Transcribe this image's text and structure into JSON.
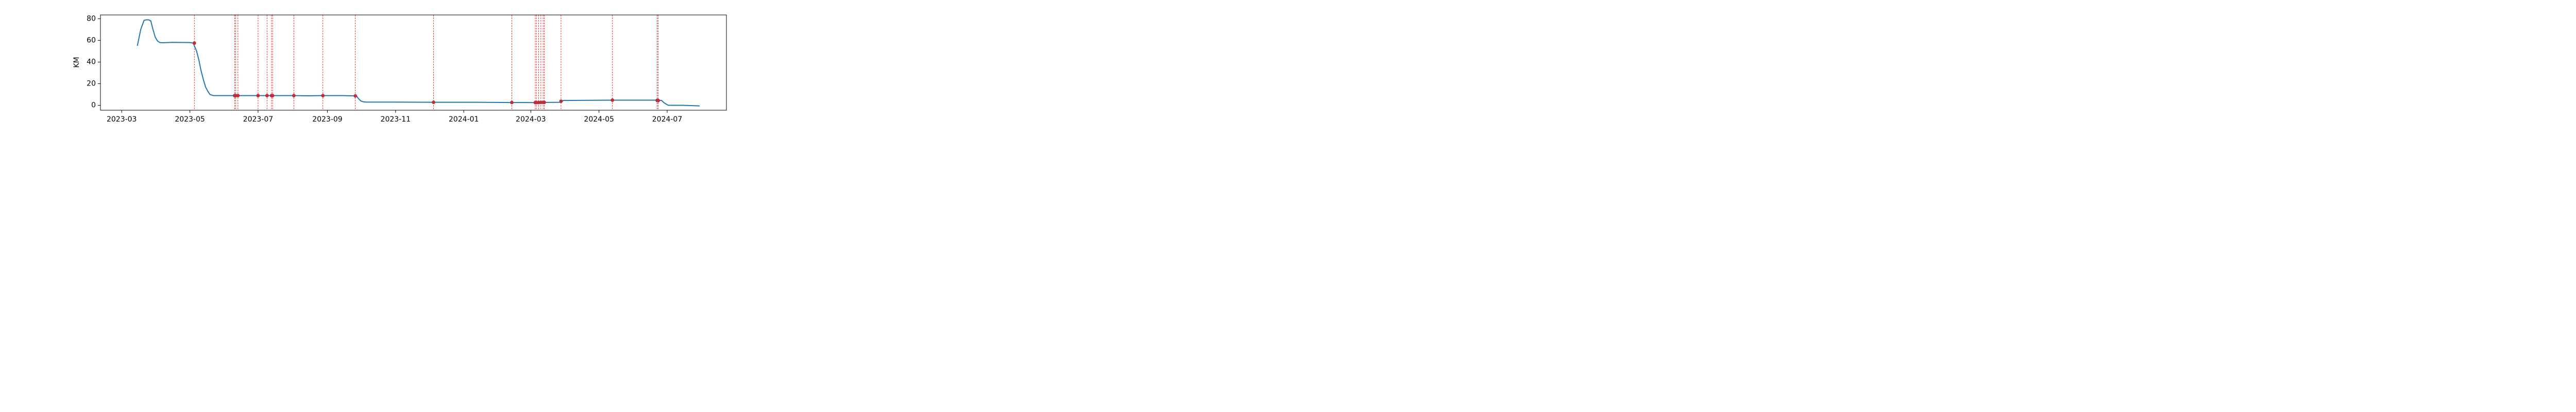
{
  "chart_data": {
    "type": "line",
    "xlabel": "",
    "ylabel": "KM",
    "xlim": [
      "2023-02-10",
      "2024-08-23"
    ],
    "ylim": [
      -4.5,
      83.5
    ],
    "x_ticks": [
      "2023-03",
      "2023-05",
      "2023-07",
      "2023-09",
      "2023-11",
      "2024-01",
      "2024-03",
      "2024-05",
      "2024-07"
    ],
    "y_ticks": [
      "0",
      "20",
      "40",
      "60",
      "80"
    ],
    "grid": false,
    "colors": {
      "line": "#1f77b4",
      "markers": "#d62728",
      "event_lines": "#ff0000"
    },
    "series": [
      {
        "x": [
          "2023-03-15",
          "2023-03-18",
          "2023-03-21",
          "2023-03-23",
          "2023-03-25",
          "2023-03-27",
          "2023-03-29",
          "2023-03-31",
          "2023-04-02",
          "2023-04-04",
          "2023-04-07",
          "2023-04-15",
          "2023-05-01",
          "2023-05-04",
          "2023-05-07",
          "2023-05-09",
          "2023-05-11",
          "2023-05-13",
          "2023-05-15",
          "2023-05-17",
          "2023-05-19",
          "2023-05-22",
          "2023-05-27",
          "2023-06-08",
          "2023-06-09",
          "2023-06-11",
          "2023-07-01",
          "2023-07-09",
          "2023-07-13",
          "2023-07-25",
          "2023-08-02",
          "2023-08-15",
          "2023-08-27",
          "2023-09-15",
          "2023-09-27",
          "2023-09-29",
          "2023-10-01",
          "2023-10-03",
          "2023-10-06",
          "2023-11-01",
          "2023-12-05",
          "2024-01-15",
          "2024-02-12",
          "2024-03-05",
          "2024-03-08",
          "2024-03-10",
          "2024-03-12",
          "2024-03-28",
          "2024-03-30",
          "2024-05-13",
          "2024-06-22",
          "2024-06-26",
          "2024-06-28",
          "2024-06-30",
          "2024-07-02",
          "2024-07-15",
          "2024-07-30"
        ],
        "values": [
          55,
          70,
          78.5,
          79,
          79,
          78,
          70,
          63,
          59.5,
          58,
          57.8,
          58.2,
          58,
          57.5,
          50,
          42,
          32,
          24,
          17,
          13,
          10,
          9,
          9,
          9,
          9,
          9,
          9,
          9,
          9,
          9,
          9,
          8.8,
          9,
          9,
          8.7,
          6,
          4,
          3.3,
          3,
          3,
          2.8,
          2.8,
          2.6,
          2.5,
          2.6,
          2.7,
          2.7,
          2.8,
          4.5,
          4.8,
          4.8,
          4.5,
          2.5,
          1.2,
          0,
          0,
          -0.5
        ]
      }
    ],
    "event_dates": [
      "2023-05-05",
      "2023-06-10",
      "2023-06-11",
      "2023-06-13",
      "2023-07-01",
      "2023-07-09",
      "2023-07-13",
      "2023-07-14",
      "2023-08-02",
      "2023-08-28",
      "2023-09-26",
      "2023-12-05",
      "2024-02-13",
      "2024-03-05",
      "2024-03-06",
      "2024-03-08",
      "2024-03-10",
      "2024-03-12",
      "2024-03-13",
      "2024-03-28",
      "2024-05-13",
      "2024-06-22",
      "2024-06-23"
    ],
    "markers": [
      {
        "x": "2023-05-05",
        "y": 57.5
      },
      {
        "x": "2023-06-10",
        "y": 9
      },
      {
        "x": "2023-06-11",
        "y": 9
      },
      {
        "x": "2023-06-13",
        "y": 9
      },
      {
        "x": "2023-07-01",
        "y": 9
      },
      {
        "x": "2023-07-09",
        "y": 9
      },
      {
        "x": "2023-07-13",
        "y": 9
      },
      {
        "x": "2023-07-14",
        "y": 9
      },
      {
        "x": "2023-08-02",
        "y": 9
      },
      {
        "x": "2023-08-28",
        "y": 9
      },
      {
        "x": "2023-09-26",
        "y": 8.7
      },
      {
        "x": "2023-12-05",
        "y": 2.8
      },
      {
        "x": "2024-02-13",
        "y": 2.6
      },
      {
        "x": "2024-03-05",
        "y": 2.5
      },
      {
        "x": "2024-03-06",
        "y": 2.5
      },
      {
        "x": "2024-03-08",
        "y": 2.6
      },
      {
        "x": "2024-03-10",
        "y": 2.7
      },
      {
        "x": "2024-03-12",
        "y": 2.7
      },
      {
        "x": "2024-03-13",
        "y": 2.7
      },
      {
        "x": "2024-03-28",
        "y": 3.8
      },
      {
        "x": "2024-05-13",
        "y": 4.8
      },
      {
        "x": "2024-06-22",
        "y": 4.6
      },
      {
        "x": "2024-06-23",
        "y": 4.4
      }
    ]
  }
}
